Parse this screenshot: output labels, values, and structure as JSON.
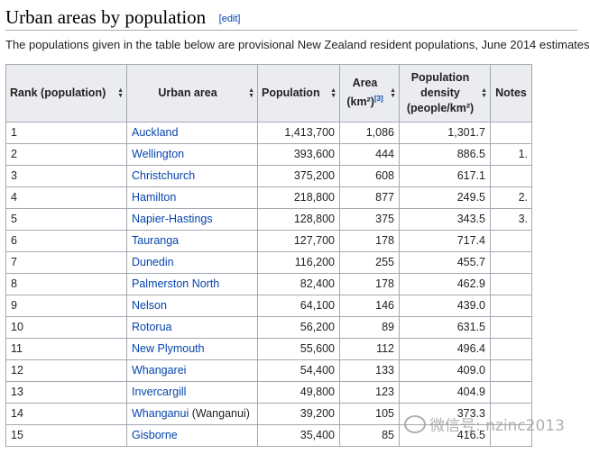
{
  "heading": {
    "title": "Urban areas by population",
    "edit_label": "[edit]"
  },
  "intro": "The populations given in the table below are provisional New Zealand resident populations, June 2014 estimates",
  "table": {
    "headers": {
      "rank": "Rank (population)",
      "area_name": "Urban area",
      "population": "Population",
      "area": "Area (km²)",
      "area_ref": "[3]",
      "density": "Population density (people/km²)",
      "notes": "Notes"
    },
    "rows": [
      {
        "rank": "1",
        "name": "Auckland",
        "extra": "",
        "population": "1,413,700",
        "area": "1,086",
        "density": "1,301.7",
        "notes": ""
      },
      {
        "rank": "2",
        "name": "Wellington",
        "extra": "",
        "population": "393,600",
        "area": "444",
        "density": "886.5",
        "notes": "1."
      },
      {
        "rank": "3",
        "name": "Christchurch",
        "extra": "",
        "population": "375,200",
        "area": "608",
        "density": "617.1",
        "notes": ""
      },
      {
        "rank": "4",
        "name": "Hamilton",
        "extra": "",
        "population": "218,800",
        "area": "877",
        "density": "249.5",
        "notes": "2."
      },
      {
        "rank": "5",
        "name": "Napier-Hastings",
        "extra": "",
        "population": "128,800",
        "area": "375",
        "density": "343.5",
        "notes": "3."
      },
      {
        "rank": "6",
        "name": "Tauranga",
        "extra": "",
        "population": "127,700",
        "area": "178",
        "density": "717.4",
        "notes": ""
      },
      {
        "rank": "7",
        "name": "Dunedin",
        "extra": "",
        "population": "116,200",
        "area": "255",
        "density": "455.7",
        "notes": ""
      },
      {
        "rank": "8",
        "name": "Palmerston North",
        "extra": "",
        "population": "82,400",
        "area": "178",
        "density": "462.9",
        "notes": ""
      },
      {
        "rank": "9",
        "name": "Nelson",
        "extra": "",
        "population": "64,100",
        "area": "146",
        "density": "439.0",
        "notes": ""
      },
      {
        "rank": "10",
        "name": "Rotorua",
        "extra": "",
        "population": "56,200",
        "area": "89",
        "density": "631.5",
        "notes": ""
      },
      {
        "rank": "11",
        "name": "New Plymouth",
        "extra": "",
        "population": "55,600",
        "area": "112",
        "density": "496.4",
        "notes": ""
      },
      {
        "rank": "12",
        "name": "Whangarei",
        "extra": "",
        "population": "54,400",
        "area": "133",
        "density": "409.0",
        "notes": ""
      },
      {
        "rank": "13",
        "name": "Invercargill",
        "extra": "",
        "population": "49,800",
        "area": "123",
        "density": "404.9",
        "notes": ""
      },
      {
        "rank": "14",
        "name": "Whanganui",
        "extra": " (Wanganui)",
        "population": "39,200",
        "area": "105",
        "density": "373.3",
        "notes": ""
      },
      {
        "rank": "15",
        "name": "Gisborne",
        "extra": "",
        "population": "35,400",
        "area": "85",
        "density": "416.5",
        "notes": ""
      }
    ]
  },
  "watermark": "微信号: nzinc2013",
  "colors": {
    "link": "#0645ad",
    "header_bg": "#eaecf0",
    "border": "#a2a9b1"
  }
}
